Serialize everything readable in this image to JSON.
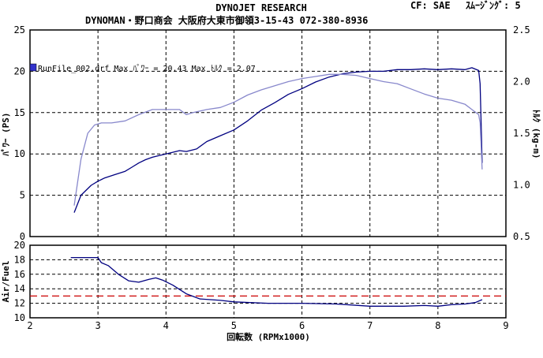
{
  "header": {
    "title": "DYNOJET  RESEARCH",
    "cf_label": "CF: SAE",
    "smoothing_label": "ｽﾑｰｼﾞﾝｸﾞ: 5",
    "subtitle": "DYNOMAN・野口商会  大阪府大東市御領3-15-43  072-380-8936"
  },
  "legend": {
    "run_text": "RunFile_002.drf Max ﾊﾟﾜｰ = 20.43      Max ﾄﾙｸ = 2.07",
    "swatch_color": "#3333cc"
  },
  "chart_data": [
    {
      "type": "line",
      "name": "power-torque",
      "ylabel": "ﾊﾟﾜｰ (PS)",
      "y2label": "ﾄﾙｸ (kg-m)",
      "xlim": [
        2,
        9
      ],
      "ylim": [
        0,
        25
      ],
      "y2lim": [
        0.5,
        2.5
      ],
      "y_ticks": [
        0,
        5,
        10,
        15,
        20,
        25
      ],
      "y2_ticks": [
        "0.5",
        "1.0",
        "1.5",
        "2.0",
        "2.5"
      ],
      "grid": true,
      "series": [
        {
          "axis": "left",
          "color": "#000080",
          "x": [
            2.65,
            2.75,
            2.9,
            3.0,
            3.1,
            3.25,
            3.4,
            3.5,
            3.6,
            3.7,
            3.8,
            3.9,
            4.0,
            4.2,
            4.3,
            4.45,
            4.6,
            4.8,
            5.0,
            5.2,
            5.4,
            5.6,
            5.8,
            6.0,
            6.2,
            6.4,
            6.6,
            6.8,
            7.0,
            7.2,
            7.4,
            7.6,
            7.8,
            8.0,
            8.2,
            8.4,
            8.5,
            8.6,
            8.62,
            8.65
          ],
          "y": [
            2.9,
            5.0,
            6.2,
            6.7,
            7.1,
            7.5,
            7.9,
            8.4,
            8.9,
            9.3,
            9.6,
            9.8,
            10.0,
            10.4,
            10.3,
            10.6,
            11.5,
            12.2,
            12.9,
            14.0,
            15.3,
            16.2,
            17.2,
            17.9,
            18.7,
            19.3,
            19.7,
            19.9,
            20.0,
            20.0,
            20.2,
            20.2,
            20.3,
            20.2,
            20.3,
            20.2,
            20.43,
            20.1,
            18.5,
            8.9
          ]
        },
        {
          "axis": "right",
          "color": "#8888cc",
          "x": [
            2.65,
            2.75,
            2.85,
            2.95,
            3.05,
            3.2,
            3.4,
            3.6,
            3.8,
            4.0,
            4.2,
            4.3,
            4.4,
            4.6,
            4.8,
            5.0,
            5.2,
            5.4,
            5.6,
            5.8,
            6.0,
            6.2,
            6.4,
            6.6,
            6.8,
            7.0,
            7.2,
            7.4,
            7.6,
            7.8,
            8.0,
            8.2,
            8.4,
            8.5,
            8.6,
            8.62,
            8.65
          ],
          "y": [
            0.8,
            1.25,
            1.5,
            1.58,
            1.6,
            1.6,
            1.62,
            1.68,
            1.73,
            1.73,
            1.73,
            1.68,
            1.7,
            1.73,
            1.75,
            1.8,
            1.87,
            1.92,
            1.96,
            2.0,
            2.03,
            2.05,
            2.07,
            2.07,
            2.06,
            2.03,
            2.0,
            1.98,
            1.93,
            1.88,
            1.84,
            1.82,
            1.78,
            1.73,
            1.68,
            1.6,
            1.15
          ]
        }
      ]
    },
    {
      "type": "line",
      "name": "air-fuel",
      "xlabel": "回転数 (RPMx1000)",
      "ylabel": "Air/Fuel",
      "xlim": [
        2,
        9
      ],
      "ylim": [
        10,
        20
      ],
      "x_ticks": [
        2,
        3,
        4,
        5,
        6,
        7,
        8,
        9
      ],
      "y_ticks": [
        10,
        12,
        14,
        16,
        18,
        20
      ],
      "reference_line": {
        "y": 13.0,
        "color": "#cc0000",
        "style": "dashed"
      },
      "grid": true,
      "series": [
        {
          "color": "#000080",
          "x": [
            2.6,
            2.8,
            3.0,
            3.05,
            3.15,
            3.3,
            3.45,
            3.6,
            3.75,
            3.85,
            3.95,
            4.1,
            4.3,
            4.5,
            4.8,
            5.0,
            5.5,
            6.0,
            6.5,
            7.0,
            7.5,
            7.8,
            8.0,
            8.2,
            8.4,
            8.55,
            8.65
          ],
          "y": [
            18.3,
            18.3,
            18.3,
            17.6,
            17.2,
            16.0,
            15.1,
            14.9,
            15.3,
            15.5,
            15.2,
            14.5,
            13.3,
            12.6,
            12.4,
            12.2,
            12.0,
            12.0,
            11.9,
            11.6,
            11.6,
            11.7,
            11.6,
            11.8,
            11.9,
            12.1,
            12.5
          ]
        }
      ]
    }
  ]
}
